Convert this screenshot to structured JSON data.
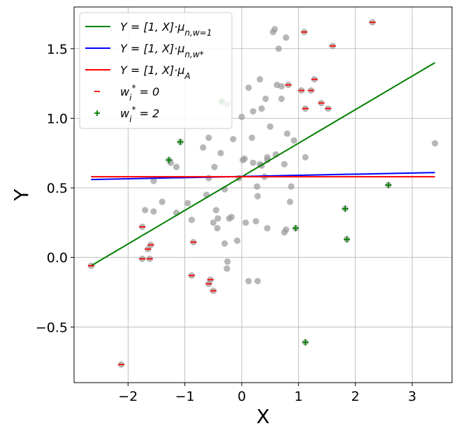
{
  "chart_data": {
    "type": "scatter",
    "title": "",
    "xlabel": "X",
    "ylabel": "Y",
    "xlim": [
      -2.95,
      3.7
    ],
    "ylim": [
      -0.9,
      1.8
    ],
    "grid": true,
    "x_ticks": [
      {
        "value": -2,
        "label": "−2"
      },
      {
        "value": -1,
        "label": "−1"
      },
      {
        "value": 0,
        "label": "0"
      },
      {
        "value": 1,
        "label": "1"
      },
      {
        "value": 2,
        "label": "2"
      },
      {
        "value": 3,
        "label": "3"
      }
    ],
    "y_ticks": [
      {
        "value": -0.5,
        "label": "−0.5"
      },
      {
        "value": 0.0,
        "label": "0.0"
      },
      {
        "value": 0.5,
        "label": "0.5"
      },
      {
        "value": 1.0,
        "label": "1.0"
      },
      {
        "value": 1.5,
        "label": "1.5"
      }
    ],
    "legend_position": "top-left",
    "lines": [
      {
        "name": "Y = [1, X]·μ_{n,w=1}",
        "color": "#008000",
        "x": [
          -2.65,
          3.4
        ],
        "y": [
          -0.06,
          1.4
        ]
      },
      {
        "name": "Y = [1, X]·μ_{n,w*}",
        "color": "#0000ff",
        "x": [
          -2.65,
          3.4
        ],
        "y": [
          0.56,
          0.61
        ]
      },
      {
        "name": "Y = [1, X]·μ_A",
        "color": "#ff0000",
        "x": [
          -2.65,
          3.4
        ],
        "y": [
          0.58,
          0.58
        ]
      }
    ],
    "legend": [
      {
        "kind": "line",
        "color": "#008000",
        "label": "Y = [1, X]·μ_{n,w=1}"
      },
      {
        "kind": "line",
        "color": "#0000ff",
        "label": "Y = [1, X]·μ_{n,w*}"
      },
      {
        "kind": "line",
        "color": "#ff0000",
        "label": "Y = [1, X]·μ_A"
      },
      {
        "kind": "minus",
        "color": "#ff0000",
        "label": "w_i* = 0"
      },
      {
        "kind": "plus",
        "color": "#008000",
        "label": "w_i* = 2"
      }
    ],
    "points_color": "#999999",
    "points": [
      [
        -2.65,
        -0.06
      ],
      [
        -2.12,
        -0.77
      ],
      [
        -1.75,
        0.22
      ],
      [
        -1.75,
        -0.01
      ],
      [
        -1.7,
        0.34
      ],
      [
        -1.65,
        0.06
      ],
      [
        -1.62,
        -0.01
      ],
      [
        -1.6,
        0.09
      ],
      [
        -1.55,
        0.55
      ],
      [
        -1.55,
        0.33
      ],
      [
        -1.4,
        0.4
      ],
      [
        -1.28,
        0.7
      ],
      [
        -1.25,
        0.68
      ],
      [
        -1.15,
        0.65
      ],
      [
        -1.15,
        0.32
      ],
      [
        -1.08,
        0.83
      ],
      [
        -0.95,
        0.39
      ],
      [
        -0.88,
        -0.13
      ],
      [
        -0.88,
        0.27
      ],
      [
        -0.85,
        0.11
      ],
      [
        -0.68,
        0.79
      ],
      [
        -0.62,
        0.45
      ],
      [
        -0.58,
        0.86
      ],
      [
        -0.58,
        0.57
      ],
      [
        -0.58,
        -0.19
      ],
      [
        -0.55,
        -0.16
      ],
      [
        -0.5,
        -0.24
      ],
      [
        -0.5,
        0.25
      ],
      [
        -0.48,
        0.65
      ],
      [
        -0.45,
        0.34
      ],
      [
        -0.43,
        0.21
      ],
      [
        -0.42,
        0.28
      ],
      [
        -0.37,
        0.75
      ],
      [
        -0.35,
        1.12
      ],
      [
        -0.3,
        0.49
      ],
      [
        -0.3,
        0.1
      ],
      [
        -0.26,
        -0.08
      ],
      [
        -0.25,
        -0.03
      ],
      [
        -0.25,
        1.1
      ],
      [
        -0.22,
        0.28
      ],
      [
        -0.18,
        0.29
      ],
      [
        -0.15,
        0.85
      ],
      [
        -0.08,
        0.12
      ],
      [
        -0.05,
        0.57
      ],
      [
        0.0,
        1.01
      ],
      [
        0.02,
        0.7
      ],
      [
        0.05,
        0.71
      ],
      [
        0.07,
        0.25
      ],
      [
        0.12,
        1.22
      ],
      [
        0.12,
        -0.17
      ],
      [
        0.18,
        0.86
      ],
      [
        0.2,
        0.68
      ],
      [
        0.2,
        1.05
      ],
      [
        0.25,
        0.26
      ],
      [
        0.27,
        0.51
      ],
      [
        0.28,
        0.44
      ],
      [
        0.28,
        -0.17
      ],
      [
        0.32,
        0.67
      ],
      [
        0.32,
        1.28
      ],
      [
        0.35,
        0.66
      ],
      [
        0.35,
        1.07
      ],
      [
        0.4,
        0.58
      ],
      [
        0.42,
        1.14
      ],
      [
        0.45,
        0.7
      ],
      [
        0.45,
        0.72
      ],
      [
        0.45,
        0.21
      ],
      [
        0.5,
        0.94
      ],
      [
        0.55,
        1.62
      ],
      [
        0.58,
        1.64
      ],
      [
        0.6,
        0.74
      ],
      [
        0.62,
        1.24
      ],
      [
        0.65,
        1.5
      ],
      [
        0.7,
        1.23
      ],
      [
        0.7,
        1.14
      ],
      [
        0.75,
        0.67
      ],
      [
        0.75,
        0.18
      ],
      [
        0.78,
        1.58
      ],
      [
        0.78,
        0.2
      ],
      [
        0.8,
        0.89
      ],
      [
        0.82,
        1.24
      ],
      [
        0.85,
        0.4
      ],
      [
        0.87,
        0.51
      ],
      [
        0.92,
        0.84
      ],
      [
        0.95,
        0.21
      ],
      [
        1.05,
        1.2
      ],
      [
        1.1,
        1.62
      ],
      [
        1.12,
        0.72
      ],
      [
        1.12,
        1.07
      ],
      [
        1.12,
        -0.61
      ],
      [
        1.22,
        1.2
      ],
      [
        1.28,
        1.28
      ],
      [
        1.4,
        1.11
      ],
      [
        1.52,
        1.07
      ],
      [
        1.6,
        1.52
      ],
      [
        1.82,
        0.35
      ],
      [
        1.85,
        0.13
      ],
      [
        2.3,
        1.69
      ],
      [
        2.58,
        0.52
      ],
      [
        3.4,
        0.82
      ]
    ],
    "minus_markers": [
      [
        -2.65,
        -0.06
      ],
      [
        -2.12,
        -0.77
      ],
      [
        -1.75,
        0.22
      ],
      [
        -1.75,
        -0.01
      ],
      [
        -1.65,
        0.06
      ],
      [
        -1.62,
        -0.01
      ],
      [
        -1.6,
        0.09
      ],
      [
        -0.88,
        -0.13
      ],
      [
        -0.85,
        0.11
      ],
      [
        -0.58,
        -0.19
      ],
      [
        -0.55,
        -0.16
      ],
      [
        -0.5,
        -0.24
      ],
      [
        0.82,
        1.24
      ],
      [
        1.05,
        1.2
      ],
      [
        1.1,
        1.62
      ],
      [
        1.12,
        1.07
      ],
      [
        1.22,
        1.2
      ],
      [
        1.28,
        1.28
      ],
      [
        1.4,
        1.11
      ],
      [
        1.52,
        1.07
      ],
      [
        1.6,
        1.52
      ],
      [
        2.3,
        1.69
      ]
    ],
    "plus_markers": [
      [
        -1.28,
        0.7
      ],
      [
        -1.08,
        0.83
      ],
      [
        -0.35,
        1.12
      ],
      [
        0.95,
        0.21
      ],
      [
        1.12,
        -0.61
      ],
      [
        1.82,
        0.35
      ],
      [
        1.85,
        0.13
      ],
      [
        2.58,
        0.52
      ]
    ]
  }
}
